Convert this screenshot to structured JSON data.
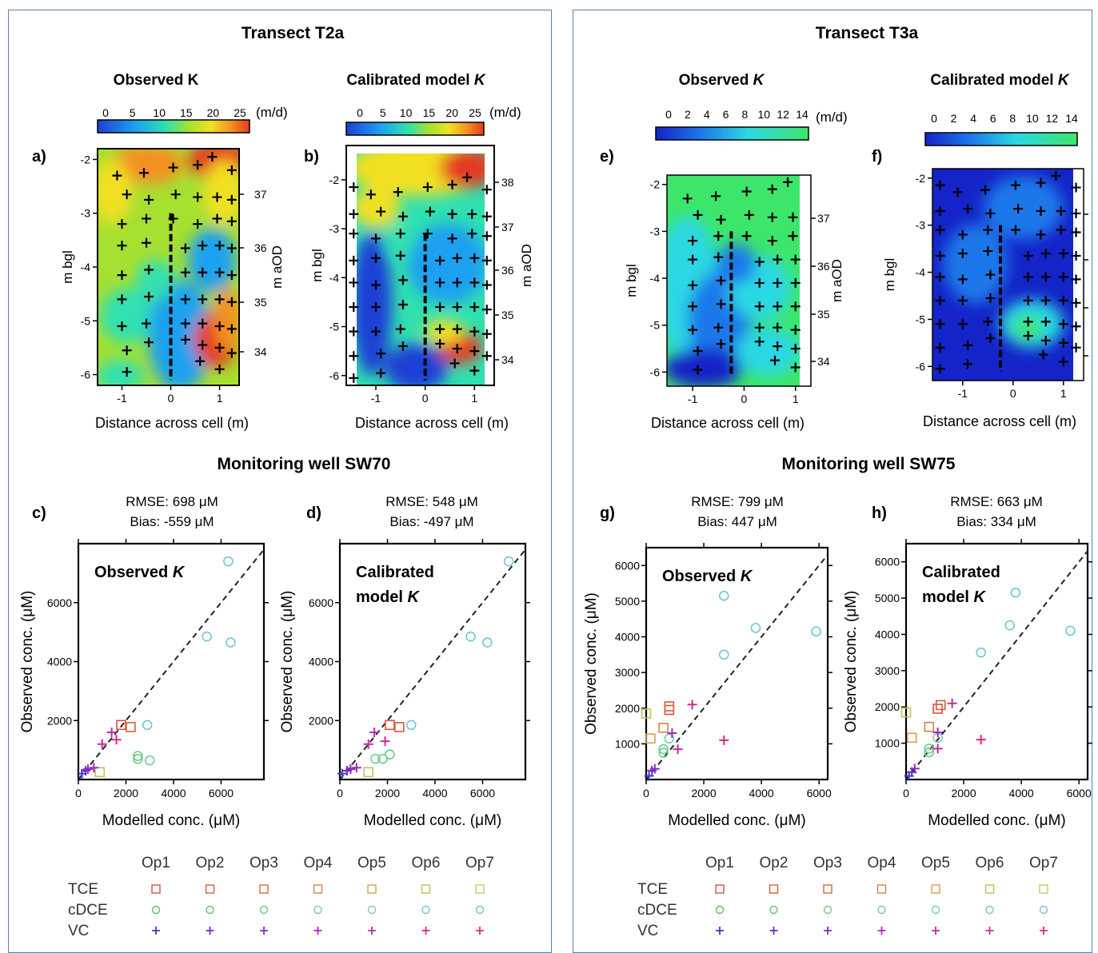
{
  "panels": [
    {
      "title": "Transect T2a",
      "monitoring_title": "Monitoring well SW70",
      "heatmaps": [
        {
          "letter": "a)",
          "title": "Observed K",
          "title_italic": "",
          "colorbar": {
            "ticks": [
              "0",
              "5",
              "10",
              "15",
              "20",
              "25"
            ],
            "unit": "(m/d)",
            "range": [
              0,
              25
            ]
          },
          "ylabel": "m bgl",
          "y2label": "m aOD",
          "xlabel": "Distance across cell (m)",
          "yticks": [
            "-2",
            "-3",
            "-4",
            "-5",
            "-6"
          ],
          "y2ticks": [
            "37",
            "36",
            "35",
            "34"
          ],
          "xticks": [
            "-1",
            "0",
            "1"
          ]
        },
        {
          "letter": "b)",
          "title": "Calibrated model ",
          "title_italic": "K",
          "colorbar": {
            "ticks": [
              "0",
              "5",
              "10",
              "15",
              "20",
              "25"
            ],
            "unit": "(m/d)",
            "range": [
              0,
              25
            ]
          },
          "ylabel": "m bgl",
          "y2label": "m aOD",
          "xlabel": "Distance across cell (m)",
          "yticks": [
            "-2",
            "-3",
            "-4",
            "-5",
            "-6"
          ],
          "y2ticks": [
            "38",
            "37",
            "36",
            "35",
            "34"
          ],
          "xticks": [
            "-1",
            "0",
            "1"
          ]
        }
      ],
      "scatters": [
        {
          "letter": "c)",
          "rmse": "RMSE: 698 μM",
          "bias": "Bias: -559 μM",
          "label1": "Observed ",
          "label1_italic": "K",
          "label2": "",
          "label2_italic": ""
        },
        {
          "letter": "d)",
          "rmse": "RMSE:  548 μM",
          "bias": "Bias: -497 μM",
          "label1": "Calibrated",
          "label1_italic": "",
          "label2": "model ",
          "label2_italic": "K"
        }
      ],
      "legend": {
        "cols": [
          "Op1",
          "Op2",
          "Op3",
          "Op4",
          "Op5",
          "Op6",
          "Op7"
        ],
        "rows": [
          "TCE",
          "cDCE",
          "VC"
        ]
      }
    },
    {
      "title": "Transect T3a",
      "monitoring_title": "Monitoring well SW75",
      "heatmaps": [
        {
          "letter": "e)",
          "title": "Observed ",
          "title_italic": "K",
          "colorbar": {
            "ticks": [
              "0",
              "2",
              "4",
              "6",
              "8",
              "10",
              "12",
              "14"
            ],
            "unit": "(m/d)",
            "range": [
              0,
              14
            ]
          },
          "ylabel": "m bgl",
          "y2label": "m aOD",
          "xlabel": "Distance across cell (m)",
          "yticks": [
            "-2",
            "-3",
            "-4",
            "-5",
            "-6"
          ],
          "y2ticks": [
            "37",
            "36",
            "35",
            "34"
          ],
          "xticks": [
            "-1",
            "0",
            "1"
          ]
        },
        {
          "letter": "f)",
          "title": "Calibrated model ",
          "title_italic": "K",
          "colorbar": {
            "ticks": [
              "0",
              "2",
              "4",
              "6",
              "8",
              "10",
              "12",
              "14"
            ],
            "unit": "",
            "range": [
              0,
              14
            ]
          },
          "ylabel": "m bgl",
          "y2label": "",
          "xlabel": "Distance across cell (m)",
          "yticks": [
            "-2",
            "-3",
            "-4",
            "-5",
            "-6"
          ],
          "y2ticks": [],
          "xticks": [
            "-1",
            "0",
            "1"
          ]
        }
      ],
      "scatters": [
        {
          "letter": "g)",
          "rmse": "RMSE:  799 μM",
          "bias": "Bias: 447 μM",
          "label1": "Observed ",
          "label1_italic": "K",
          "label2": "",
          "label2_italic": ""
        },
        {
          "letter": "h)",
          "rmse": "RMSE:  663 μM",
          "bias": "Bias:  334 μM",
          "label1": "Calibrated",
          "label1_italic": "",
          "label2": "model ",
          "label2_italic": "K"
        }
      ],
      "legend": {
        "cols": [
          "Op1",
          "Op2",
          "Op3",
          "Op4",
          "Op5",
          "Op6",
          "Op7"
        ],
        "rows": [
          "TCE",
          "cDCE",
          "VC"
        ]
      }
    }
  ],
  "series_colors": {
    "TCE": [
      "#d9503a",
      "#d65a3c",
      "#d9683f",
      "#d6824a",
      "#d8a04c",
      "#cdbd55",
      "#bfcf5a"
    ],
    "cDCE": [
      "#57c45a",
      "#5ec868",
      "#68cc86",
      "#6ed0a0",
      "#72cfb8",
      "#70c9cc",
      "#6ec6da"
    ],
    "VC": [
      "#3b3bc8",
      "#6a2fc4",
      "#8a2bc2",
      "#a42ab9",
      "#c42aa8",
      "#d42a90",
      "#dd2a7a"
    ]
  },
  "chart_data": [
    {
      "type": "scatter",
      "panel": "c",
      "xlabel": "Modelled conc. (μM)",
      "ylabel": "Observed conc. (μM)",
      "xlim": [
        0,
        7800
      ],
      "ylim": [
        0,
        8000
      ],
      "xticks": [
        0,
        2000,
        4000,
        6000
      ],
      "yticks": [
        2000,
        4000,
        6000
      ],
      "series": [
        {
          "name": "TCE",
          "points": [
            [
              1800,
              1850,
              0
            ],
            [
              2200,
              1780,
              1
            ],
            [
              900,
              250,
              5
            ]
          ]
        },
        {
          "name": "cDCE",
          "points": [
            [
              2900,
              1850,
              6
            ],
            [
              2500,
              800,
              2
            ],
            [
              2500,
              700,
              2
            ],
            [
              3000,
              650,
              3
            ],
            [
              5400,
              4850,
              6
            ],
            [
              6400,
              4650,
              6
            ],
            [
              6300,
              7400,
              6
            ]
          ]
        },
        {
          "name": "VC",
          "points": [
            [
              150,
              200,
              0
            ],
            [
              300,
              300,
              1
            ],
            [
              400,
              350,
              2
            ],
            [
              650,
              400,
              3
            ],
            [
              1000,
              1200,
              4
            ],
            [
              1400,
              1600,
              4
            ],
            [
              1600,
              1350,
              5
            ]
          ]
        }
      ]
    },
    {
      "type": "scatter",
      "panel": "d",
      "xlabel": "Modelled conc. (μM)",
      "ylabel": "Observed conc. (μM)",
      "xlim": [
        0,
        7800
      ],
      "ylim": [
        0,
        8000
      ],
      "xticks": [
        0,
        2000,
        4000,
        6000
      ],
      "yticks": [
        2000,
        4000,
        6000
      ],
      "series": [
        {
          "name": "TCE",
          "points": [
            [
              2100,
              1850,
              0
            ],
            [
              2500,
              1780,
              1
            ],
            [
              1200,
              250,
              5
            ]
          ]
        },
        {
          "name": "cDCE",
          "points": [
            [
              3000,
              1850,
              6
            ],
            [
              2100,
              850,
              2
            ],
            [
              1800,
              700,
              2
            ],
            [
              1500,
              700,
              3
            ],
            [
              5500,
              4850,
              6
            ],
            [
              6200,
              4650,
              6
            ],
            [
              7100,
              7400,
              6
            ]
          ]
        },
        {
          "name": "VC",
          "points": [
            [
              100,
              200,
              0
            ],
            [
              300,
              300,
              1
            ],
            [
              450,
              350,
              2
            ],
            [
              700,
              400,
              3
            ],
            [
              1200,
              1200,
              4
            ],
            [
              1450,
              1600,
              4
            ],
            [
              1900,
              1300,
              5
            ]
          ]
        }
      ]
    },
    {
      "type": "scatter",
      "panel": "g",
      "xlabel": "Modelled conc. (μM)",
      "ylabel": "Observed conc. (μM)",
      "xlim": [
        0,
        6300
      ],
      "ylim": [
        0,
        6500
      ],
      "xticks": [
        0,
        2000,
        4000,
        6000
      ],
      "yticks": [
        1000,
        2000,
        3000,
        4000,
        5000,
        6000
      ],
      "series": [
        {
          "name": "TCE",
          "points": [
            [
              800,
              1950,
              0
            ],
            [
              800,
              2050,
              1
            ],
            [
              600,
              1450,
              3
            ],
            [
              0,
              1850,
              5
            ],
            [
              150,
              1150,
              4
            ]
          ]
        },
        {
          "name": "cDCE",
          "points": [
            [
              600,
              850,
              2
            ],
            [
              600,
              750,
              2
            ],
            [
              800,
              1150,
              4
            ],
            [
              2700,
              3500,
              6
            ],
            [
              2700,
              5150,
              6
            ],
            [
              3800,
              4250,
              6
            ],
            [
              5900,
              4150,
              6
            ]
          ]
        },
        {
          "name": "VC",
          "points": [
            [
              100,
              100,
              0
            ],
            [
              200,
              250,
              1
            ],
            [
              300,
              300,
              2
            ],
            [
              900,
              1300,
              3
            ],
            [
              1100,
              850,
              4
            ],
            [
              1600,
              2100,
              5
            ],
            [
              2700,
              1100,
              6
            ]
          ]
        }
      ]
    },
    {
      "type": "scatter",
      "panel": "h",
      "xlabel": "Modelled conc. (μM)",
      "ylabel": "Observed conc. (μM)",
      "xlim": [
        0,
        6300
      ],
      "ylim": [
        0,
        6500
      ],
      "xticks": [
        0,
        2000,
        4000,
        6000
      ],
      "yticks": [
        1000,
        2000,
        3000,
        4000,
        5000,
        6000
      ],
      "series": [
        {
          "name": "TCE",
          "points": [
            [
              1100,
              1950,
              0
            ],
            [
              1200,
              2050,
              1
            ],
            [
              800,
              1450,
              3
            ],
            [
              0,
              1850,
              5
            ],
            [
              200,
              1150,
              4
            ]
          ]
        },
        {
          "name": "cDCE",
          "points": [
            [
              800,
              850,
              2
            ],
            [
              800,
              750,
              2
            ],
            [
              1100,
              1150,
              4
            ],
            [
              2600,
              3500,
              6
            ],
            [
              3600,
              4250,
              6
            ],
            [
              3800,
              5150,
              6
            ],
            [
              5700,
              4100,
              6
            ]
          ]
        },
        {
          "name": "VC",
          "points": [
            [
              100,
              100,
              0
            ],
            [
              200,
              200,
              1
            ],
            [
              300,
              300,
              2
            ],
            [
              1100,
              1300,
              3
            ],
            [
              1100,
              850,
              4
            ],
            [
              1600,
              2100,
              5
            ],
            [
              2600,
              1100,
              6
            ]
          ]
        }
      ]
    }
  ]
}
